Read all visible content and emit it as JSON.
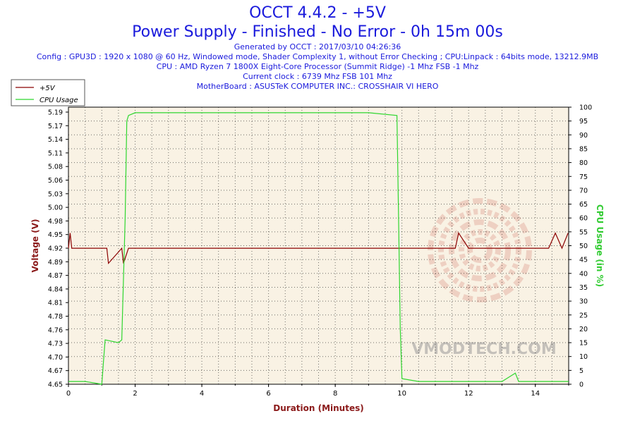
{
  "header": {
    "title1": "OCCT 4.4.2 - +5V",
    "title2": "Power Supply - Finished - No Error - 0h 15m 00s",
    "info": [
      "Generated by OCCT : 2017/03/10 04:26:36",
      "Config : GPU3D : 1920 x 1080 @ 60 Hz, Windowed mode, Shader Complexity 1, without Error Checking ; CPU:Linpack : 64bits mode, 13212.9MB",
      "CPU : AMD Ryzen 7 1800X Eight-Core Processor (Summit Ridge) -1 Mhz FSB -1 Mhz",
      "Current clock : 6739 Mhz FSB 101 Mhz",
      "MotherBoard : ASUSTeK COMPUTER INC.: CROSSHAIR VI HERO"
    ]
  },
  "watermark": "VMODTECH.COM",
  "colors": {
    "volt": "#8b0000",
    "cpu": "#2fd62f",
    "plot_bg": "#f9f2e4",
    "axis_text": "#8b1a1a",
    "cpu_axis_text": "#33cc33",
    "title": "#1a1adc"
  },
  "chart_data": {
    "type": "line",
    "xlabel": "Duration (Minutes)",
    "ylabel_left": "Voltage (V)",
    "ylabel_right": "CPU Usage (in %)",
    "xlim": [
      0,
      15
    ],
    "ylim_left": [
      4.65,
      5.2
    ],
    "ylim_right": [
      0,
      100
    ],
    "x_ticks": [
      0,
      2,
      4,
      6,
      8,
      10,
      12,
      14
    ],
    "y_left_ticks": [
      "4.65",
      "4.67",
      "4.70",
      "4.73",
      "4.76",
      "4.78",
      "4.81",
      "4.84",
      "4.87",
      "4.89",
      "4.92",
      "4.95",
      "4.98",
      "5.00",
      "5.03",
      "5.06",
      "5.08",
      "5.11",
      "5.14",
      "5.17",
      "5.19"
    ],
    "y_right_ticks": [
      0,
      5,
      10,
      15,
      20,
      25,
      30,
      35,
      40,
      45,
      50,
      55,
      60,
      65,
      70,
      75,
      80,
      85,
      90,
      95,
      100
    ],
    "grid": true,
    "legend_position": "top-left",
    "series": [
      {
        "name": "+5V",
        "axis": "left",
        "x": [
          0,
          0.05,
          0.1,
          0.2,
          1.15,
          1.2,
          1.6,
          1.65,
          1.8,
          2.0,
          3.0,
          4.0,
          5.0,
          6.0,
          7.0,
          8.0,
          9.0,
          9.95,
          10.0,
          11.0,
          11.6,
          11.7,
          12.0,
          13.0,
          14.4,
          14.6,
          14.8,
          14.98
        ],
        "y": [
          4.92,
          4.95,
          4.92,
          4.92,
          4.92,
          4.89,
          4.92,
          4.89,
          4.92,
          4.92,
          4.92,
          4.92,
          4.92,
          4.92,
          4.92,
          4.92,
          4.92,
          4.92,
          4.92,
          4.92,
          4.92,
          4.95,
          4.92,
          4.92,
          4.92,
          4.95,
          4.92,
          4.95
        ]
      },
      {
        "name": "CPU Usage",
        "axis": "right",
        "x": [
          0,
          0.5,
          1.0,
          1.05,
          1.1,
          1.5,
          1.6,
          1.7,
          1.75,
          1.8,
          2.0,
          3.0,
          4.0,
          5.0,
          6.0,
          7.0,
          8.0,
          9.0,
          9.85,
          9.9,
          9.95,
          10.0,
          10.5,
          11.0,
          12.0,
          13.0,
          13.4,
          13.5,
          14.0,
          15.0
        ],
        "y": [
          1,
          1,
          0,
          8,
          16,
          15,
          16,
          60,
          95,
          97,
          98,
          98,
          98,
          98,
          98,
          98,
          98,
          98,
          97,
          60,
          20,
          2,
          1,
          1,
          1,
          1,
          4,
          1,
          1,
          1
        ]
      }
    ]
  }
}
